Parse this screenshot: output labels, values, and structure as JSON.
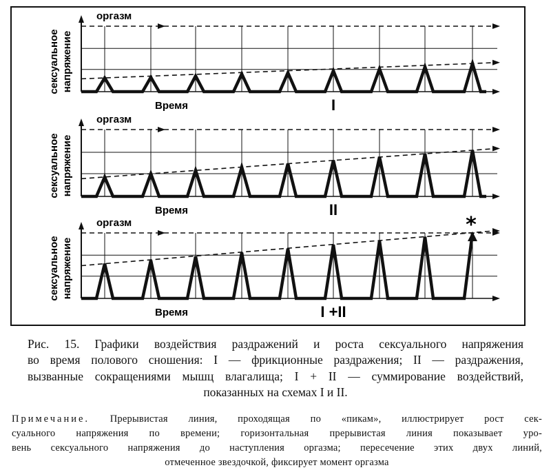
{
  "chart_data": [
    {
      "type": "line",
      "panel_label": "I",
      "ylabel": "сексуальное напряжение",
      "xlabel": "Время",
      "threshold_label": "оргазм",
      "peaks": [
        0.21,
        0.22,
        0.24,
        0.27,
        0.29,
        0.32,
        0.35,
        0.38,
        0.43
      ],
      "threshold": 1.0,
      "orgasm_marker": false
    },
    {
      "type": "line",
      "panel_label": "II",
      "ylabel": "сексуальное напряжение",
      "xlabel": "Время",
      "threshold_label": "оргазм",
      "peaks": [
        0.29,
        0.34,
        0.39,
        0.44,
        0.49,
        0.54,
        0.59,
        0.64,
        0.69
      ],
      "threshold": 1.0,
      "orgasm_marker": false
    },
    {
      "type": "line",
      "panel_label": "I +II",
      "ylabel": "сексуальное напряжение",
      "xlabel": "Время",
      "threshold_label": "оргазм",
      "peaks": [
        0.53,
        0.58,
        0.64,
        0.7,
        0.76,
        0.82,
        0.88,
        0.94,
        1.0
      ],
      "threshold": 1.0,
      "orgasm_marker": true,
      "marker_symbol": "*"
    }
  ],
  "caption": {
    "lines": [
      "Рис. 15. Графики воздействия раздражений и роста сексуального напряжения",
      "во время полового сношения: I — фрикционные раздражения; II — раздражения,",
      "вызванные сокращениями мышц влагалища; I + II — суммирование воздействий,",
      "показанных на схемах I и II."
    ]
  },
  "note": {
    "heading": "Примечание.",
    "lines": [
      "Прерывистая линия, проходящая по «пикам», иллюстрирует рост сек-",
      "суального напряжения по времени; горизонтальная прерывистая линия показывает уро-",
      "вень сексуального напряжения до наступления оргазма; пересечение этих двух линий,",
      "отмеченное звездочкой, фиксирует момент оргазма"
    ]
  }
}
